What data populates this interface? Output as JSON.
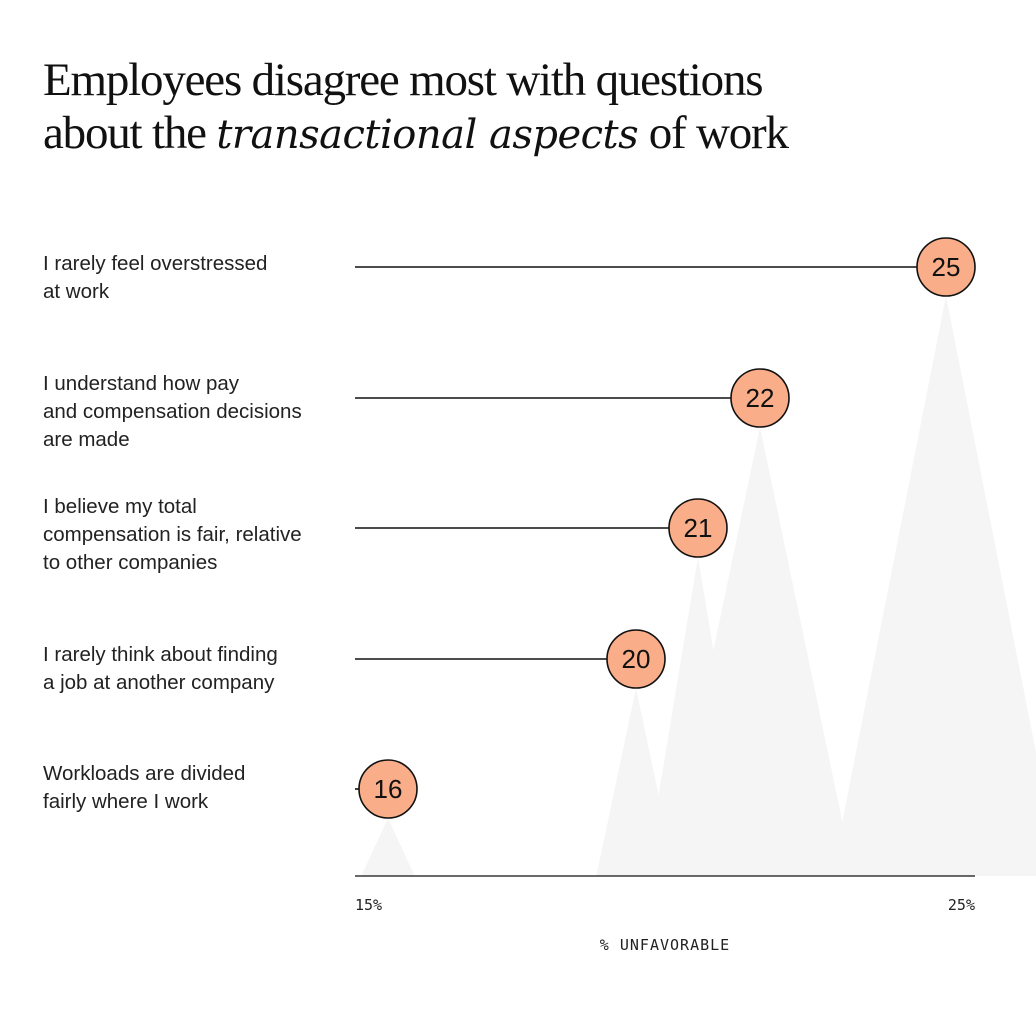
{
  "title": {
    "line1": "Employees disagree most with questions",
    "line2_before": "about the ",
    "line2_emphasis": "transactional aspects",
    "line2_after": " of work"
  },
  "colors": {
    "marker_fill": "#F9AD88",
    "marker_stroke": "#111111",
    "line": "#111111",
    "shadow": "#F5F5F5"
  },
  "chart_data": {
    "type": "lollipop",
    "xlabel": "% UNFAVORABLE",
    "xlim": [
      15,
      25
    ],
    "x_ticks": [
      15,
      25
    ],
    "x_tick_labels": [
      "15%",
      "25%"
    ],
    "categories": [
      "I rarely feel overstressed\nat work",
      "I understand how pay\nand compensation decisions\nare made",
      "I believe my total\ncompensation is fair, relative\nto other companies",
      "I rarely think about finding\na job at another company",
      "Workloads are divided\nfairly where I work"
    ],
    "values": [
      25,
      22,
      21,
      20,
      16
    ],
    "grid": false
  }
}
